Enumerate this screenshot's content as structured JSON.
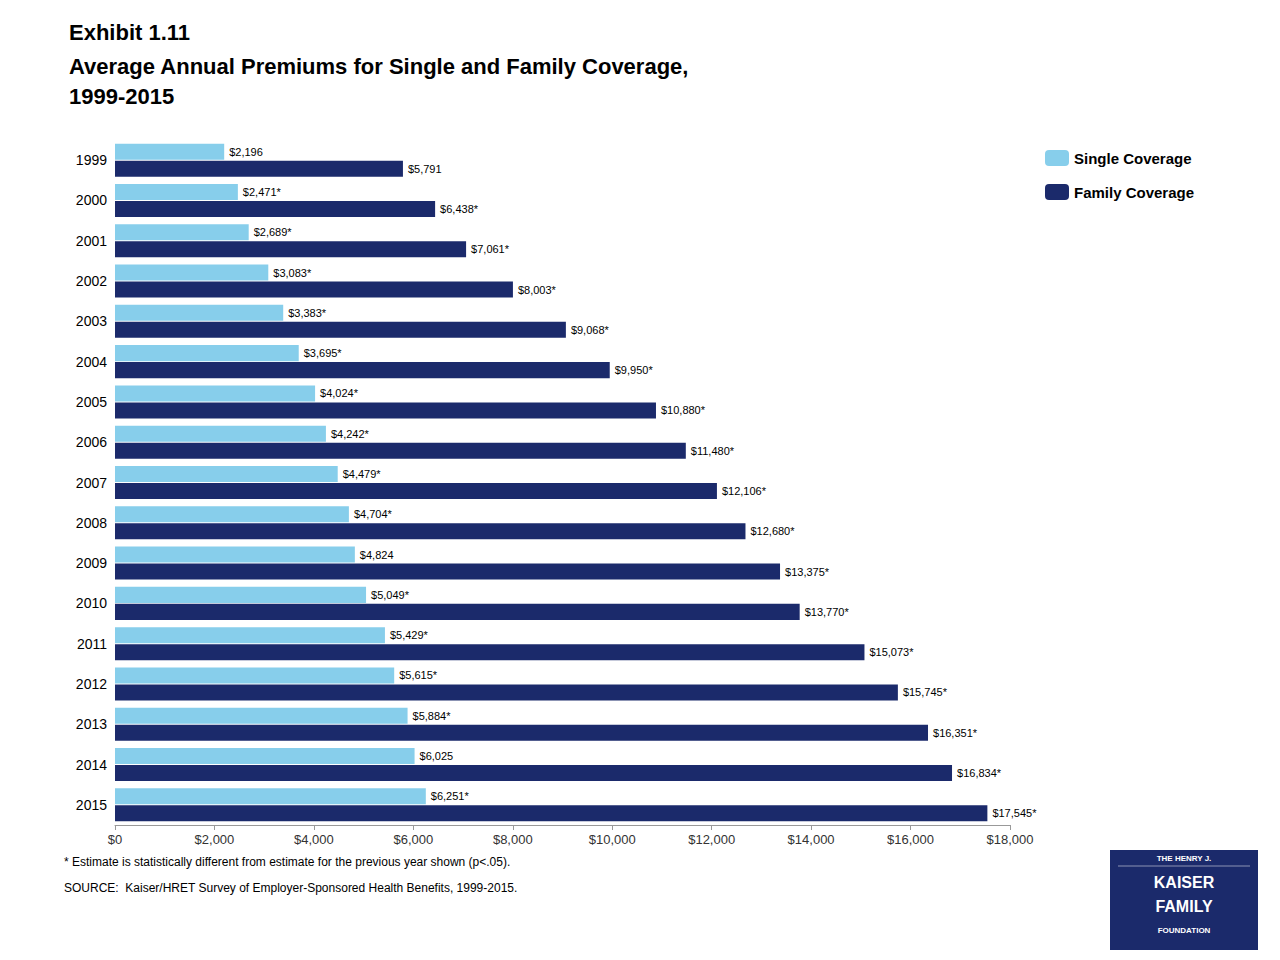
{
  "chart_data": {
    "type": "bar",
    "orientation": "horizontal",
    "title": "Exhibit 1.11",
    "subtitle": [
      "Average Annual Premiums for Single and Family Coverage,",
      "1999-2015"
    ],
    "categories": [
      "1999",
      "2000",
      "2001",
      "2002",
      "2003",
      "2004",
      "2005",
      "2006",
      "2007",
      "2008",
      "2009",
      "2010",
      "2011",
      "2012",
      "2013",
      "2014",
      "2015"
    ],
    "series": [
      {
        "name": "Single Coverage",
        "color": "#87CEEB",
        "values": [
          2196,
          2471,
          2689,
          3083,
          3383,
          3695,
          4024,
          4242,
          4479,
          4704,
          4824,
          5049,
          5429,
          5615,
          5884,
          6025,
          6251
        ],
        "value_labels": [
          "$2,196",
          "$2,471*",
          "$2,689*",
          "$3,083*",
          "$3,383*",
          "$3,695*",
          "$4,024*",
          "$4,242*",
          "$4,479*",
          "$4,704*",
          "$4,824",
          "$5,049*",
          "$5,429*",
          "$5,615*",
          "$5,884*",
          "$6,025",
          "$6,251*"
        ]
      },
      {
        "name": "Family Coverage",
        "color": "#1B2A6B",
        "values": [
          5791,
          6438,
          7061,
          8003,
          9068,
          9950,
          10880,
          11480,
          12106,
          12680,
          13375,
          13770,
          15073,
          15745,
          16351,
          16834,
          17545
        ],
        "value_labels": [
          "$5,791",
          "$6,438*",
          "$7,061*",
          "$8,003*",
          "$9,068*",
          "$9,950*",
          "$10,880*",
          "$11,480*",
          "$12,106*",
          "$12,680*",
          "$13,375*",
          "$13,770*",
          "$15,073*",
          "$15,745*",
          "$16,351*",
          "$16,834*",
          "$17,545*"
        ]
      }
    ],
    "xlim": [
      0,
      18000
    ],
    "xticks": [
      {
        "value": 0,
        "label": "$0"
      },
      {
        "value": 2000,
        "label": "$2,000"
      },
      {
        "value": 4000,
        "label": "$4,000"
      },
      {
        "value": 6000,
        "label": "$6,000"
      },
      {
        "value": 8000,
        "label": "$8,000"
      },
      {
        "value": 10000,
        "label": "$10,000"
      },
      {
        "value": 12000,
        "label": "$12,000"
      },
      {
        "value": 14000,
        "label": "$14,000"
      },
      {
        "value": 16000,
        "label": "$16,000"
      },
      {
        "value": 18000,
        "label": "$18,000"
      }
    ],
    "data_labels": true,
    "grid": false,
    "legend": "right",
    "annotations": [
      "* Estimate is statistically different from estimate for the previous year shown (p<.05).",
      "SOURCE:  Kaiser/HRET Survey of Employer-Sponsored Health Benefits, 1999-2015."
    ],
    "logo": [
      "THE HENRY J.",
      "KAISER",
      "FAMILY",
      "FOUNDATION"
    ]
  }
}
